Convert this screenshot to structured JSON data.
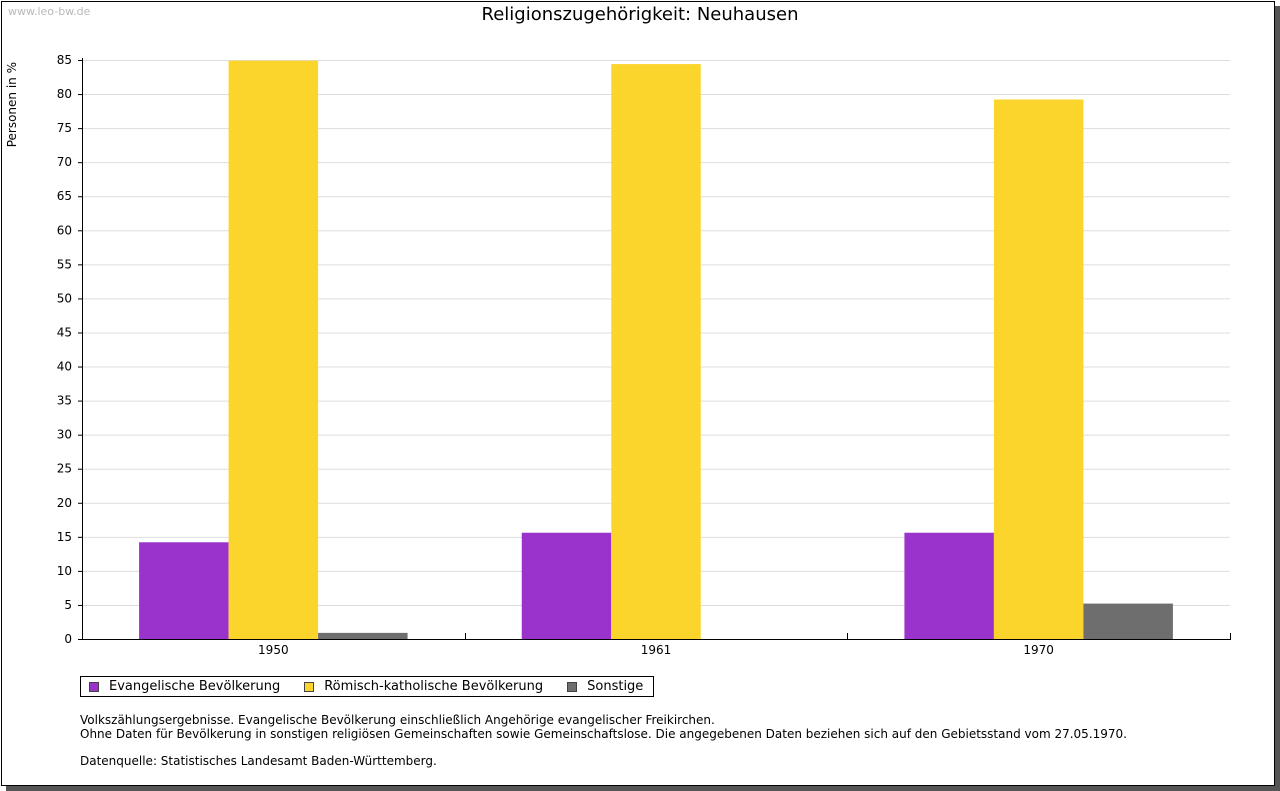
{
  "watermark": "www.leo-bw.de",
  "chart_data": {
    "type": "bar",
    "title": "Religionszugehörigkeit: Neuhausen",
    "xlabel": "",
    "ylabel": "Personen in %",
    "categories": [
      "1950",
      "1961",
      "1970"
    ],
    "series": [
      {
        "name": "Evangelische Bevölkerung",
        "color": "#9933cc",
        "values": [
          14.2,
          15.6,
          15.6
        ]
      },
      {
        "name": "Römisch-katholische Bevölkerung",
        "color": "#fcd52c",
        "values": [
          84.9,
          84.4,
          79.2
        ]
      },
      {
        "name": "Sonstige",
        "color": "#6e6e6e",
        "values": [
          0.9,
          0.0,
          5.2
        ]
      }
    ],
    "ylim": [
      0,
      85
    ],
    "yticks": [
      0,
      5,
      10,
      15,
      20,
      25,
      30,
      35,
      40,
      45,
      50,
      55,
      60,
      65,
      70,
      75,
      80,
      85
    ],
    "grid": true,
    "legend_position": "bottom-left"
  },
  "notes": {
    "line1": "Volkszählungsergebnisse. Evangelische Bevölkerung einschließlich Angehörige evangelischer Freikirchen.",
    "line2": "Ohne Daten für Bevölkerung in sonstigen religiösen Gemeinschaften sowie Gemeinschaftslose. Die angegebenen Daten beziehen sich auf den Gebietsstand vom 27.05.1970.",
    "source": "Datenquelle: Statistisches Landesamt Baden-Württemberg."
  }
}
